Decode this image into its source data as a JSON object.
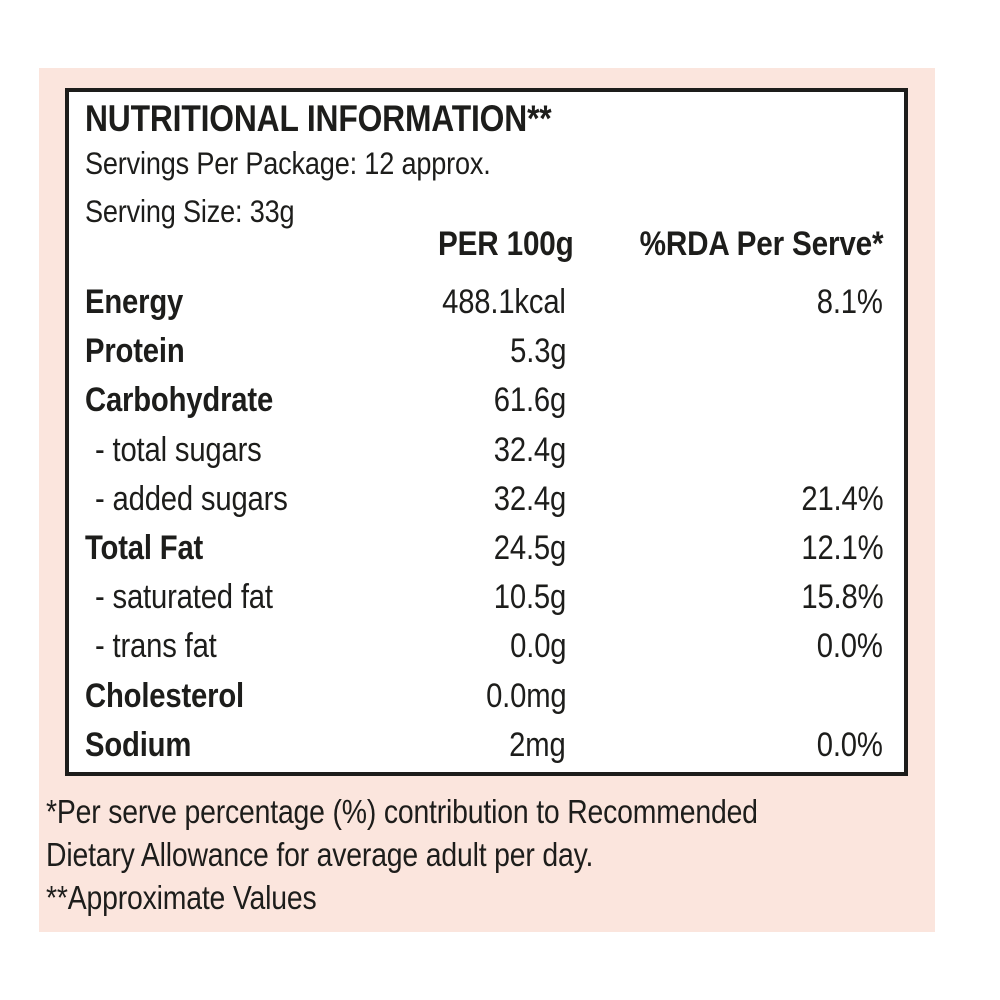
{
  "colors": {
    "page_bg": "#ffffff",
    "panel_bg": "#fbe5dd",
    "box_bg": "#ffffff",
    "border": "#1d1d1b",
    "text": "#1d1d1b"
  },
  "label": {
    "title": "NUTRITIONAL INFORMATION**",
    "servings_line": "Servings Per Package: 12 approx.",
    "serving_size_line": "Serving Size: 33g",
    "columns": {
      "per_100g": "PER 100g",
      "rda_per_serve": "%RDA Per Serve*"
    },
    "rows": [
      {
        "name": "Energy",
        "per_100g": "488.1kcal",
        "rda": "8.1%",
        "bold": true,
        "sub": false
      },
      {
        "name": "Protein",
        "per_100g": "5.3g",
        "rda": "",
        "bold": true,
        "sub": false
      },
      {
        "name": "Carbohydrate",
        "per_100g": "61.6g",
        "rda": "",
        "bold": true,
        "sub": false
      },
      {
        "name": "- total sugars",
        "per_100g": "32.4g",
        "rda": "",
        "bold": false,
        "sub": true
      },
      {
        "name": "- added sugars",
        "per_100g": "32.4g",
        "rda": "21.4%",
        "bold": false,
        "sub": true
      },
      {
        "name": "Total Fat",
        "per_100g": "24.5g",
        "rda": "12.1%",
        "bold": true,
        "sub": false
      },
      {
        "name": "- saturated fat",
        "per_100g": "10.5g",
        "rda": "15.8%",
        "bold": false,
        "sub": true
      },
      {
        "name": "- trans fat",
        "per_100g": "0.0g",
        "rda": "0.0%",
        "bold": false,
        "sub": true
      },
      {
        "name": "Cholesterol",
        "per_100g": "0.0mg",
        "rda": "",
        "bold": true,
        "sub": false
      },
      {
        "name": "Sodium",
        "per_100g": "2mg",
        "rda": "0.0%",
        "bold": true,
        "sub": false
      }
    ],
    "footnote_lines": [
      "*Per serve percentage (%) contribution to Recommended",
      "Dietary Allowance for average adult per day.",
      "**Approximate Values"
    ]
  }
}
